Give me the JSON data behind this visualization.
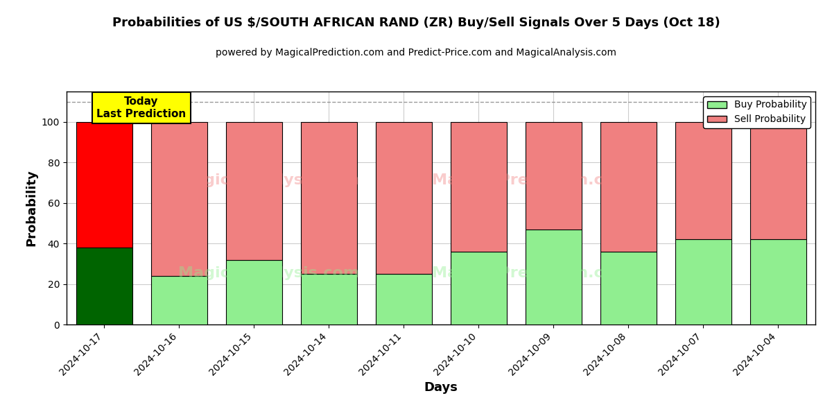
{
  "title": "Probabilities of US $/SOUTH AFRICAN RAND (ZR) Buy/Sell Signals Over 5 Days (Oct 18)",
  "subtitle": "powered by MagicalPrediction.com and Predict-Price.com and MagicalAnalysis.com",
  "xlabel": "Days",
  "ylabel": "Probability",
  "categories": [
    "2024-10-17",
    "2024-10-16",
    "2024-10-15",
    "2024-10-14",
    "2024-10-11",
    "2024-10-10",
    "2024-10-09",
    "2024-10-08",
    "2024-10-07",
    "2024-10-04"
  ],
  "buy_values": [
    38,
    24,
    32,
    25,
    25,
    36,
    47,
    36,
    42,
    42
  ],
  "sell_values": [
    62,
    76,
    68,
    75,
    75,
    64,
    53,
    64,
    58,
    58
  ],
  "buy_colors": [
    "#006400",
    "#90EE90",
    "#90EE90",
    "#90EE90",
    "#90EE90",
    "#90EE90",
    "#90EE90",
    "#90EE90",
    "#90EE90",
    "#90EE90"
  ],
  "sell_colors": [
    "#FF0000",
    "#F08080",
    "#F08080",
    "#F08080",
    "#F08080",
    "#F08080",
    "#F08080",
    "#F08080",
    "#F08080",
    "#F08080"
  ],
  "today_label": "Today\nLast Prediction",
  "today_box_color": "#FFFF00",
  "today_box_border": "#000000",
  "legend_buy_color": "#90EE90",
  "legend_sell_color": "#F08080",
  "ylim": [
    0,
    115
  ],
  "yticks": [
    0,
    20,
    40,
    60,
    80,
    100
  ],
  "background_color": "#ffffff",
  "grid_color": "#cccccc",
  "bar_edge_color": "#000000",
  "bar_linewidth": 0.8,
  "dashed_line_y": 110,
  "wm_color_pink": "#F08080",
  "wm_color_green": "#90EE90",
  "wm_alpha": 0.4
}
